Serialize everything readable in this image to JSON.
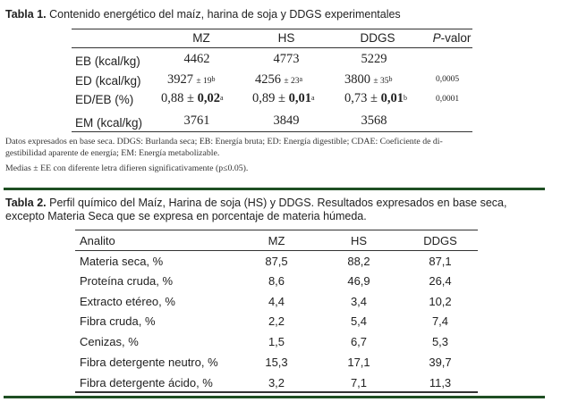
{
  "table1": {
    "tag": "Tabla 1.",
    "title": "Contenido energético del maíz, harina de soja y DDGS experimentales",
    "headers": [
      "MZ",
      "HS",
      "DDGS",
      "P-valor"
    ],
    "rows": [
      {
        "label": "EB (kcal/kg)",
        "mz": "4462",
        "hs": "4773",
        "ddgs": "5229",
        "p": ""
      },
      {
        "label": "ED (kcal/kg)",
        "mz": {
          "mean": "3927",
          "se": "± 19",
          "sup": "b"
        },
        "hs": {
          "mean": "4256",
          "se": "± 23",
          "sup": "a"
        },
        "ddgs": {
          "mean": "3800",
          "se": "± 35",
          "sup": "b"
        },
        "p": "0,0005"
      },
      {
        "label": "ED/EB (%)",
        "mz": {
          "mean": "0,88",
          "pm": "±",
          "se": "0,02",
          "sup": "a"
        },
        "hs": {
          "mean": "0,89",
          "pm": "±",
          "se": "0,01",
          "sup": "a"
        },
        "ddgs": {
          "mean": "0,73",
          "pm": "±",
          "se": "0,01",
          "sup": "b"
        },
        "p": "0,0001"
      },
      {
        "label": "EM (kcal/kg)",
        "mz": "3761",
        "hs": "3849",
        "ddgs": "3568",
        "p": ""
      }
    ],
    "note1": "Datos expresados en base seca. DDGS: Burlanda seca; EB: Energía bruta; ED: Energía digestible; CDAE: Coeficiente de di-",
    "note2": "gestibilidad aparente de energía; EM: Energía metabolizable.",
    "note3": "Medias ± EE con diferente letra difieren significativamente (p≤0.05)."
  },
  "table2": {
    "tag": "Tabla 2.",
    "title_line1": "Perfil químico del Maíz, Harina de soja (HS) y DDGS. Resultados expresados en base seca,",
    "title_line2": "excepto Materia Seca que se expresa en porcentaje de materia húmeda.",
    "headers": [
      "Analito",
      "MZ",
      "HS",
      "DDGS"
    ],
    "rows": [
      [
        "Materia seca, %",
        "87,5",
        "88,2",
        "87,1"
      ],
      [
        "Proteína cruda, %",
        "8,6",
        "46,9",
        "26,4"
      ],
      [
        "Extracto etéreo, %",
        "4,4",
        "3,4",
        "10,2"
      ],
      [
        "Fibra cruda, %",
        "2,2",
        "5,4",
        "7,4"
      ],
      [
        "Cenizas, %",
        "1,5",
        "6,7",
        "5,3"
      ],
      [
        "Fibra detergente neutro, %",
        "15,3",
        "17,1",
        "39,7"
      ],
      [
        "Fibra detergente ácido, %",
        "3,2",
        "7,1",
        "11,3"
      ]
    ]
  },
  "colors": {
    "accent_green": "#1f4f23",
    "text": "#222222"
  }
}
